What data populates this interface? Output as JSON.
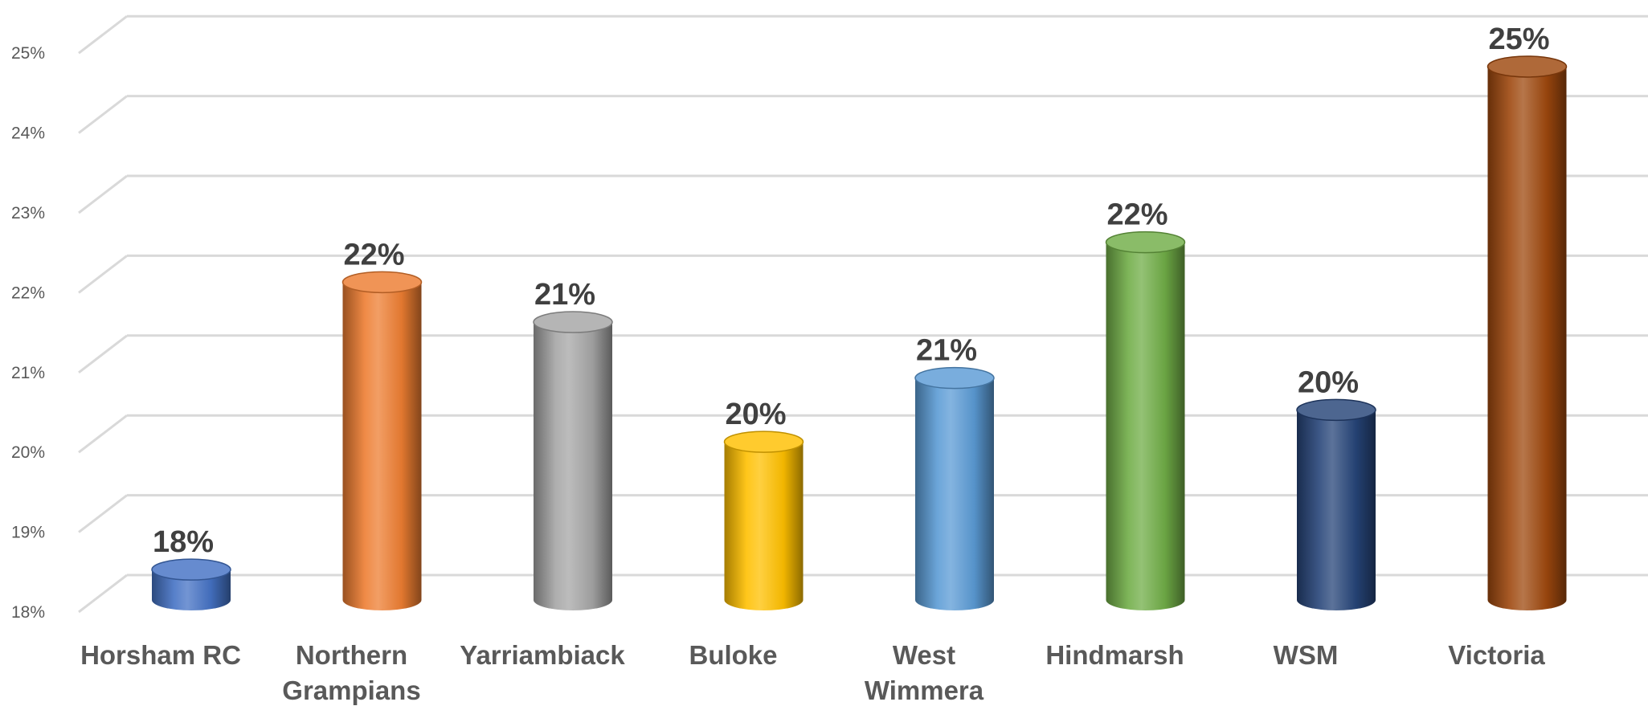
{
  "chart_data": {
    "type": "bar",
    "style": "3d-cylinder",
    "categories": [
      "Horsham RC",
      "Northern Grampians",
      "Yarriambiack",
      "Buloke",
      "West Wimmera",
      "Hindmarsh",
      "WSM",
      "Victoria"
    ],
    "category_lines": [
      [
        "Horsham RC"
      ],
      [
        "Northern",
        "Grampians"
      ],
      [
        "Yarriambiack"
      ],
      [
        "Buloke"
      ],
      [
        "West",
        "Wimmera"
      ],
      [
        "Hindmarsh"
      ],
      [
        "WSM"
      ],
      [
        "Victoria"
      ]
    ],
    "values": [
      18.3,
      21.9,
      21.4,
      19.9,
      20.7,
      22.4,
      20.3,
      24.6
    ],
    "data_labels": [
      "18%",
      "22%",
      "21%",
      "20%",
      "21%",
      "22%",
      "20%",
      "25%"
    ],
    "colors": [
      "#4472C4",
      "#ED7D31",
      "#A5A5A5",
      "#FFC000",
      "#5B9BD5",
      "#70AD47",
      "#264478",
      "#9E480E"
    ],
    "yticks": [
      "18%",
      "19%",
      "20%",
      "21%",
      "22%",
      "23%",
      "24%",
      "25%"
    ],
    "ylim": [
      18,
      25.7
    ],
    "grid": true,
    "title": "",
    "xlabel": "",
    "ylabel": "",
    "legend": "none"
  }
}
